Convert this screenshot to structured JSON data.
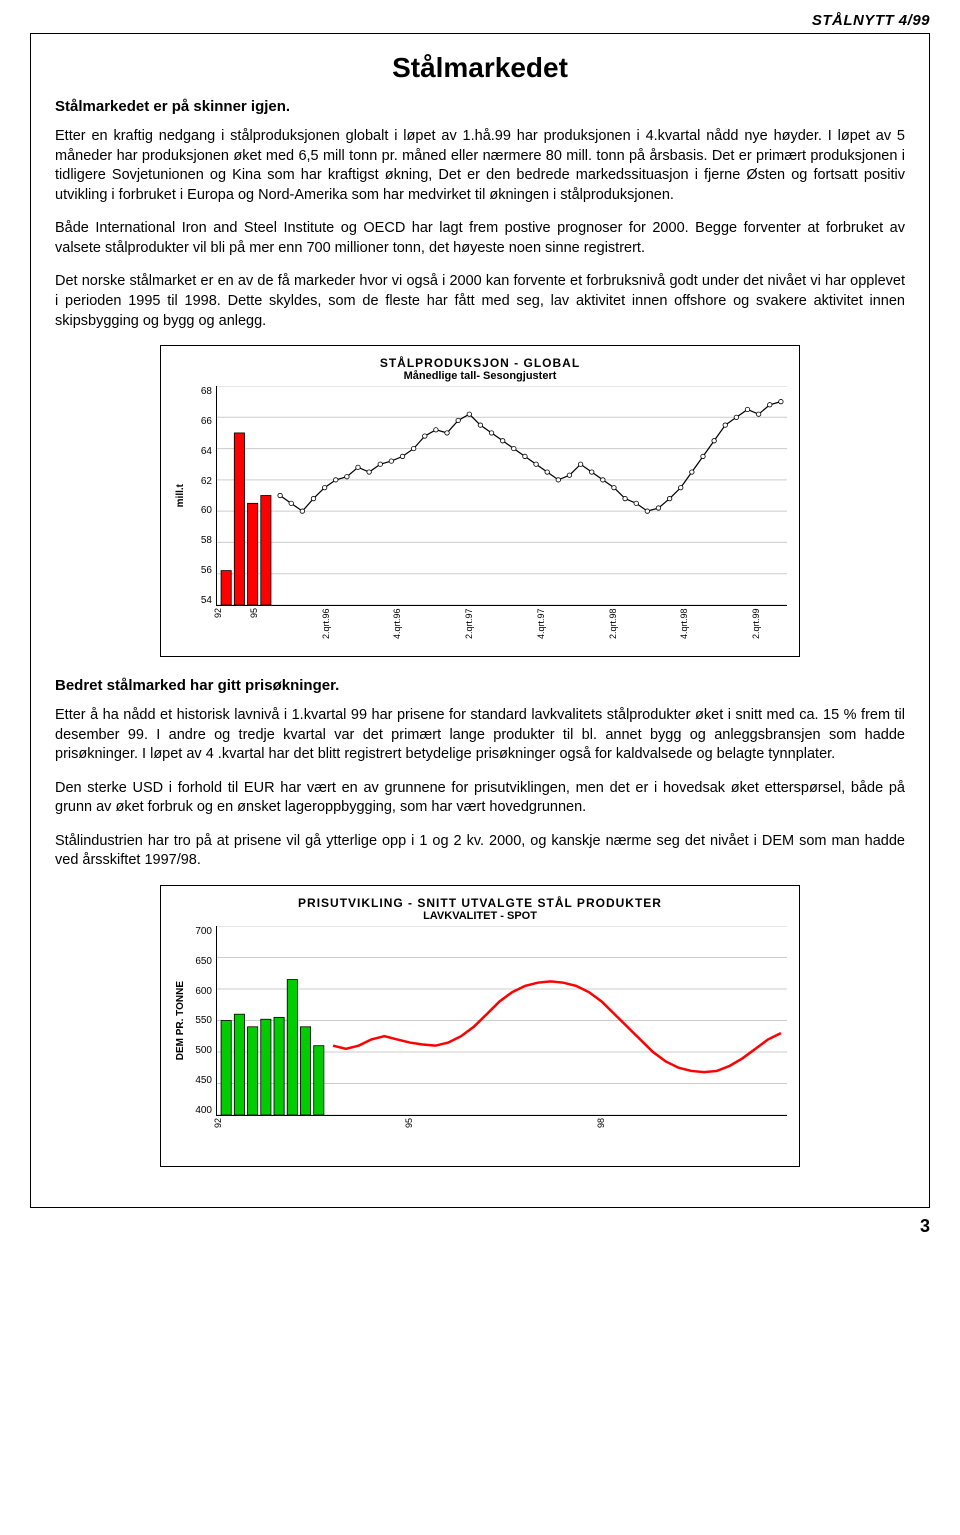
{
  "header": {
    "issue": "STÅLNYTT 4/99"
  },
  "title": "Stålmarkedet",
  "section1": {
    "heading": "Stålmarkedet er på skinner igjen.",
    "p1": "Etter en kraftig nedgang i stålproduksjonen globalt i løpet av 1.hå.99 har produksjonen i 4.kvartal nådd nye høyder. I løpet av 5 måneder har produksjonen øket med 6,5 mill tonn pr. måned eller nærmere 80 mill. tonn på årsbasis. Det er primært produksjonen i tidligere Sovjetunionen og Kina som har kraftigst økning,  Det er den bedrede markedssituasjon i fjerne Østen og fortsatt positiv utvikling i forbruket i Europa og Nord-Amerika som har medvirket til økningen i stålproduksjonen.",
    "p2": "Både International Iron and Steel Institute og OECD har lagt frem postive prognoser for 2000. Begge forventer at forbruket av valsete stålprodukter vil bli på mer enn 700 millioner tonn, det høyeste noen sinne registrert.",
    "p3": "Det norske stålmarket er en av de få markeder hvor vi også i 2000 kan forvente et forbruksnivå godt under det nivået vi har opplevet i perioden 1995 til 1998. Dette skyldes, som de fleste har fått med seg, lav aktivitet innen offshore og svakere aktivitet innen skipsbygging og bygg og anlegg."
  },
  "chart1": {
    "type": "bar+line",
    "title": "STÅLPRODUKSJON - GLOBAL",
    "subtitle": "Månedlige tall- Sesongjustert",
    "ylabel": "mill.t",
    "ylim": [
      54,
      68
    ],
    "ytick_step": 2,
    "yticks": [
      "68",
      "66",
      "64",
      "62",
      "60",
      "58",
      "56",
      "54"
    ],
    "bar_color": "#ff0000",
    "bar_border": "#000000",
    "line_color": "#000000",
    "marker_fill": "#ffffff",
    "grid_color": "#cccccc",
    "background_color": "#ffffff",
    "bars": [
      56.2,
      65.0,
      60.5,
      61.0
    ],
    "line_values": [
      61.0,
      60.5,
      60.0,
      60.8,
      61.5,
      62.0,
      62.2,
      62.8,
      62.5,
      63.0,
      63.2,
      63.5,
      64.0,
      64.8,
      65.2,
      65.0,
      65.8,
      66.2,
      65.5,
      65.0,
      64.5,
      64.0,
      63.5,
      63.0,
      62.5,
      62.0,
      62.3,
      63.0,
      62.5,
      62.0,
      61.5,
      60.8,
      60.5,
      60.0,
      60.2,
      60.8,
      61.5,
      62.5,
      63.5,
      64.5,
      65.5,
      66.0,
      66.5,
      66.2,
      66.8,
      67.0
    ],
    "x_labels": [
      "92",
      "95",
      "",
      "2.qrt.96",
      "",
      "4.qrt.96",
      "",
      "2.qrt.97",
      "",
      "4.qrt.97",
      "",
      "2.qrt.98",
      "",
      "4.qrt.98",
      "",
      "2.qrt.99"
    ]
  },
  "section2": {
    "heading": "Bedret stålmarked har gitt prisøkninger.",
    "p1": "Etter å ha nådd et historisk lavnivå i 1.kvartal 99 har prisene for standard lavkvalitets stålprodukter øket i snitt med ca. 15 % frem til desember 99. I andre og tredje kvartal var det primært lange produkter til bl. annet bygg og anleggsbransjen som hadde prisøkninger. I løpet av 4 .kvartal har det blitt registrert betydelige prisøkninger også for kaldvalsede og belagte tynnplater.",
    "p2": "Den sterke USD i forhold til EUR har vært en av grunnene for prisutviklingen, men det er i hovedsak øket etterspørsel, både på grunn av øket forbruk og en ønsket lageroppbygging, som har vært hovedgrunnen.",
    "p3": "Stålindustrien har tro på at prisene vil gå ytterlige opp i 1 og 2 kv. 2000, og kanskje nærme seg det nivået i DEM som man hadde ved årsskiftet 1997/98."
  },
  "chart2": {
    "type": "bar+line",
    "title": "PRISUTVIKLING - SNITT UTVALGTE STÅL PRODUKTER",
    "subtitle": "LAVKVALITET - SPOT",
    "ylabel": "DEM PR. TONNE",
    "ylim": [
      400,
      700
    ],
    "ytick_step": 50,
    "yticks": [
      "700",
      "650",
      "600",
      "550",
      "500",
      "450",
      "400"
    ],
    "bar_color": "#00cc00",
    "bar_border": "#000000",
    "line_color": "#ff0000",
    "grid_color": "#cccccc",
    "background_color": "#ffffff",
    "bars": [
      550,
      560,
      540,
      552,
      555,
      615,
      540,
      510
    ],
    "line_values": [
      510,
      505,
      510,
      520,
      525,
      520,
      515,
      512,
      510,
      515,
      525,
      540,
      560,
      580,
      595,
      605,
      610,
      612,
      610,
      605,
      595,
      580,
      560,
      540,
      520,
      500,
      485,
      475,
      470,
      468,
      470,
      478,
      490,
      505,
      520,
      530
    ],
    "line_width": 2.5,
    "x_labels": [
      "92",
      "95",
      "98"
    ]
  },
  "page_number": "3"
}
